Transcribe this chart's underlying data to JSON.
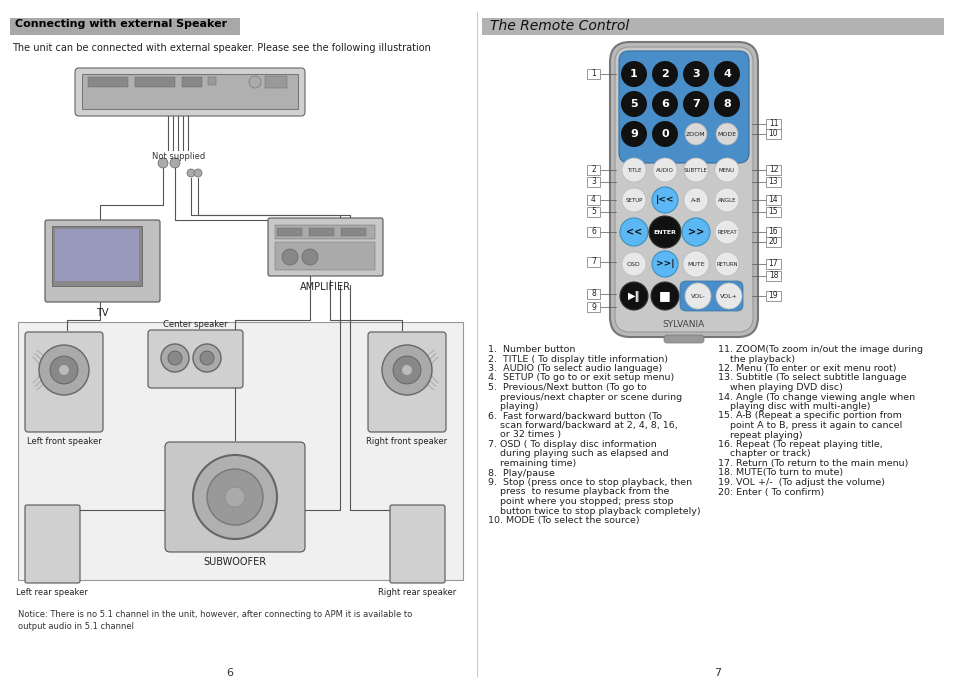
{
  "background_color": "#ffffff",
  "left_header": "Connecting with external Speaker",
  "left_body": "The unit can be connected with external speaker. Please see the following illustration",
  "left_notice1": "Notice: There is no 5.1 channel in the unit, however, after connecting to APM it is available to",
  "left_notice2": "output audio in 5.1 channel",
  "right_header": "The Remote Control",
  "sylvania_text": "SYLVANIA",
  "num_row1": [
    "1",
    "2",
    "3",
    "4"
  ],
  "num_row2": [
    "5",
    "6",
    "7",
    "8"
  ],
  "num_row3": [
    "9",
    "0"
  ],
  "btn_zoom": "ZOOM",
  "btn_mode": "MODE",
  "btn_title": "TITLE",
  "btn_audio": "AUDIO",
  "btn_subttle": "SUBTTLE",
  "btn_menu": "MENU",
  "btn_setup": "SETUP",
  "btn_ab": "A-B",
  "btn_angle": "ANGLE",
  "btn_enter": "ENTER",
  "btn_repeat": "REPEAT",
  "btn_osd": "OSD",
  "btn_mute": "MUTE",
  "btn_return": "RETURN",
  "btn_volm": "VOL-",
  "btn_volp": "VOL+",
  "desc_left": [
    "1.  Number button",
    "2.  TITLE ( To display title information)",
    "3.  AUDIO (To select audio language)",
    "4.  SETUP (To go to or exit setup menu)",
    "5.  Previous/Next button (To go to",
    "    previous/next chapter or scene during",
    "    playing)",
    "6.  Fast forward/backward button (To",
    "    scan forward/backward at 2, 4, 8, 16,",
    "    or 32 times )",
    "7. OSD ( To display disc information",
    "    during playing such as elapsed and",
    "    remaining time)",
    "8.  Play/pause",
    "9.  Stop (press once to stop playback, then",
    "    press  to resume playback from the",
    "    point where you stopped; press stop",
    "    button twice to stop playback completely)",
    "10. MODE (To select the source)"
  ],
  "desc_right": [
    "11. ZOOM(To zoom in/out the image during",
    "    the playback)",
    "12. Menu (To enter or exit menu root)",
    "13. Subtitle (To select subtitle language",
    "    when playing DVD disc)",
    "14. Angle (To change viewing angle when",
    "    playing disc with multi-angle)",
    "15. A-B (Repeat a specific portion from",
    "    point A to B, press it again to cancel",
    "    repeat playing)",
    "16. Repeat (To repeat playing title,",
    "    chapter or track)",
    "17. Return (To return to the main menu)",
    "18. MUTE(To turn to mute)",
    "19. VOL +/-  (To adjust the volume)",
    "20: Enter ( To confirm)"
  ],
  "page_left": "6",
  "page_right": "7",
  "remote_body": "#b8b8b8",
  "remote_inner": "#c8c8c8",
  "blue_pad": "#4a8ec9",
  "black_btn": "#111111",
  "white_btn": "#e8e8e8",
  "cyan_btn": "#5bb8f5",
  "header_left_bg": "#a8a8a8",
  "header_right_bg": "#b2b2b2"
}
